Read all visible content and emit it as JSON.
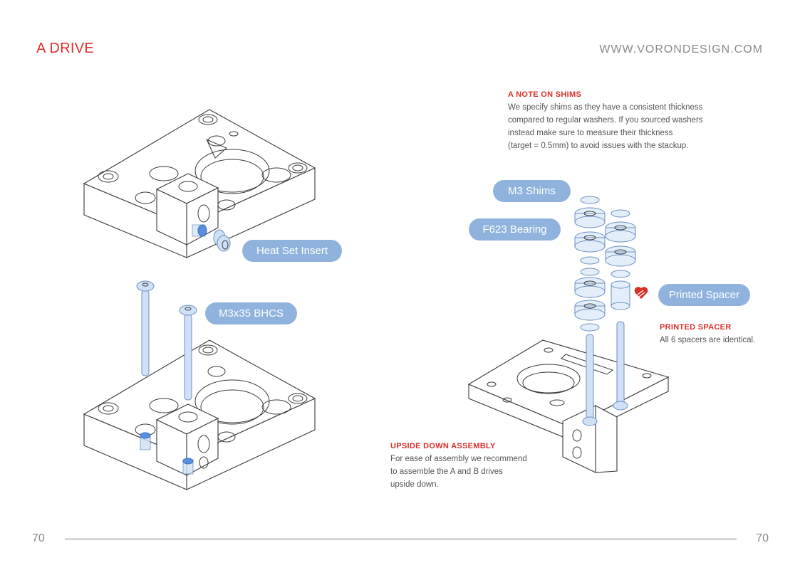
{
  "header": {
    "section_title": "A DRIVE",
    "site_url": "WWW.VORONDESIGN.COM"
  },
  "notes": {
    "shims": {
      "title": "A NOTE ON SHIMS",
      "lines": [
        "We specify shims as they have a consistent thickness",
        "compared to regular washers. If you sourced washers",
        "instead make sure to measure their thickness",
        "(target = 0.5mm) to avoid issues with the stackup."
      ]
    },
    "spacer": {
      "title": "PRINTED SPACER",
      "text": "All 6 spacers are identical."
    },
    "upside_down": {
      "title": "UPSIDE DOWN ASSEMBLY",
      "lines": [
        "For ease of assembly we recommend",
        "to assemble the A and B drives",
        "upside down."
      ]
    }
  },
  "callouts": {
    "heat_set_insert": "Heat Set Insert",
    "bhcs": "M3x35 BHCS",
    "m3_shims": "M3 Shims",
    "f623_bearing": "F623 Bearing",
    "printed_spacer": "Printed Spacer"
  },
  "footer": {
    "page_left": "70",
    "page_right": "70"
  },
  "icons": {
    "printed_part_marker": "printed-part-icon"
  },
  "colors": {
    "accent_red": "#d9302a",
    "callout_blue": "#8fb3dd",
    "hardware_blue": "#5b8ede"
  }
}
